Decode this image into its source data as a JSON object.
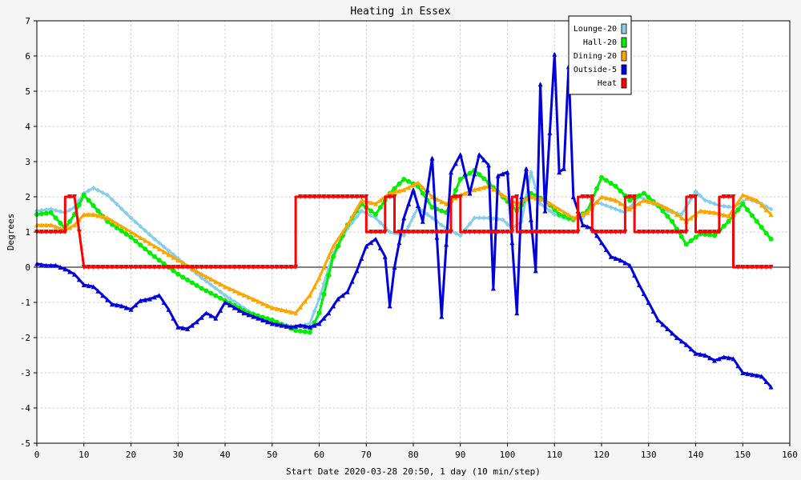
{
  "chart_data": {
    "type": "line",
    "title": "Heating in Essex",
    "xlabel": "Start Date 2020-03-28 20:50, 1 day (10 min/step)",
    "ylabel": "Degrees",
    "xlim": [
      0,
      160
    ],
    "ylim": [
      -5,
      7
    ],
    "x_ticks": [
      0,
      10,
      20,
      30,
      40,
      50,
      60,
      70,
      80,
      90,
      100,
      110,
      120,
      130,
      140,
      150,
      160
    ],
    "y_ticks": [
      -5,
      -4,
      -3,
      -2,
      -1,
      0,
      1,
      2,
      3,
      4,
      5,
      6,
      7
    ],
    "grid": true,
    "legend_position": "top-right",
    "series": [
      {
        "name": "Lounge-20",
        "color": "#87ceeb",
        "marker": "diamond",
        "x": [
          0,
          3,
          6,
          8,
          10,
          12,
          15,
          20,
          25,
          30,
          35,
          40,
          45,
          50,
          55,
          58,
          60,
          63,
          66,
          69,
          72,
          75,
          78,
          81,
          84,
          87,
          90,
          93,
          96,
          99,
          101,
          103,
          105,
          107,
          110,
          113,
          116,
          119,
          122,
          125,
          128,
          131,
          134,
          137,
          140,
          142,
          145,
          148,
          151,
          154,
          156
        ],
        "y": [
          1.6,
          1.65,
          1.55,
          1.7,
          2.1,
          2.25,
          2.05,
          1.4,
          0.8,
          0.25,
          -0.3,
          -0.8,
          -1.25,
          -1.55,
          -1.7,
          -1.6,
          -0.9,
          0.4,
          1.1,
          1.6,
          1.4,
          1.0,
          0.9,
          1.7,
          1.4,
          1.1,
          0.9,
          1.4,
          1.4,
          1.35,
          1.1,
          1.3,
          2.7,
          1.8,
          1.5,
          1.35,
          1.4,
          1.85,
          1.7,
          1.55,
          2.0,
          1.8,
          1.6,
          1.5,
          2.15,
          1.9,
          1.75,
          1.7,
          1.95,
          1.8,
          1.65
        ]
      },
      {
        "name": "Hall-20",
        "color": "#00ee00",
        "marker": "circle",
        "x": [
          0,
          3,
          6,
          8,
          10,
          12,
          15,
          20,
          25,
          30,
          35,
          40,
          45,
          50,
          55,
          58,
          60,
          63,
          66,
          69,
          72,
          75,
          78,
          81,
          84,
          87,
          90,
          93,
          96,
          99,
          102,
          105,
          108,
          111,
          114,
          117,
          120,
          123,
          126,
          129,
          132,
          135,
          138,
          141,
          144,
          147,
          150,
          153,
          156
        ],
        "y": [
          1.5,
          1.55,
          1.1,
          1.5,
          2.05,
          1.75,
          1.3,
          0.85,
          0.3,
          -0.2,
          -0.6,
          -0.95,
          -1.3,
          -1.5,
          -1.8,
          -1.85,
          -1.3,
          0.3,
          1.2,
          1.8,
          1.5,
          2.1,
          2.5,
          2.3,
          1.7,
          1.55,
          2.5,
          2.75,
          2.4,
          2.0,
          1.6,
          2.1,
          1.9,
          1.5,
          1.35,
          1.6,
          2.55,
          2.3,
          1.9,
          2.1,
          1.75,
          1.3,
          0.65,
          0.95,
          0.9,
          1.3,
          1.8,
          1.3,
          0.8
        ]
      },
      {
        "name": "Dining-20",
        "color": "#ffa500",
        "marker": "triangle",
        "x": [
          0,
          3,
          6,
          8,
          10,
          12,
          15,
          20,
          25,
          30,
          35,
          40,
          45,
          50,
          55,
          58,
          60,
          63,
          66,
          69,
          72,
          75,
          78,
          81,
          84,
          87,
          90,
          93,
          96,
          99,
          102,
          105,
          108,
          111,
          114,
          117,
          120,
          123,
          126,
          129,
          132,
          135,
          138,
          141,
          144,
          147,
          150,
          153,
          156
        ],
        "y": [
          1.2,
          1.2,
          1.05,
          1.2,
          1.5,
          1.5,
          1.4,
          1.0,
          0.6,
          0.2,
          -0.2,
          -0.55,
          -0.85,
          -1.15,
          -1.3,
          -0.8,
          -0.3,
          0.6,
          1.2,
          1.9,
          1.8,
          2.1,
          2.2,
          2.4,
          2.0,
          1.8,
          2.05,
          2.2,
          2.3,
          2.05,
          1.8,
          2.0,
          1.9,
          1.65,
          1.4,
          1.55,
          2.0,
          1.9,
          1.65,
          1.9,
          1.8,
          1.6,
          1.3,
          1.6,
          1.55,
          1.45,
          2.05,
          1.9,
          1.5
        ]
      },
      {
        "name": "Outside-5",
        "color": "#0000dd",
        "marker": "triangle",
        "x": [
          0,
          2,
          4,
          6,
          8,
          10,
          12,
          14,
          16,
          18,
          20,
          22,
          24,
          26,
          28,
          30,
          32,
          34,
          36,
          38,
          40,
          42,
          44,
          46,
          48,
          50,
          52,
          54,
          56,
          58,
          60,
          62,
          64,
          66,
          68,
          70,
          72,
          74,
          75,
          76,
          78,
          80,
          82,
          84,
          86,
          88,
          90,
          92,
          94,
          96,
          97,
          98,
          100,
          102,
          103,
          104,
          106,
          107,
          108,
          110,
          111,
          112,
          113,
          114,
          116,
          118,
          120,
          122,
          124,
          126,
          128,
          130,
          132,
          134,
          136,
          138,
          140,
          142,
          144,
          146,
          148,
          150,
          152,
          154,
          156
        ],
        "y": [
          0.1,
          0.05,
          0.05,
          -0.05,
          -0.2,
          -0.5,
          -0.55,
          -0.8,
          -1.05,
          -1.1,
          -1.2,
          -0.95,
          -0.9,
          -0.8,
          -1.2,
          -1.7,
          -1.75,
          -1.55,
          -1.3,
          -1.45,
          -1.0,
          -1.15,
          -1.3,
          -1.4,
          -1.5,
          -1.6,
          -1.65,
          -1.7,
          -1.65,
          -1.7,
          -1.6,
          -1.3,
          -0.9,
          -0.7,
          -0.1,
          0.6,
          0.8,
          0.3,
          -1.1,
          0.0,
          1.4,
          2.2,
          1.3,
          3.1,
          -1.4,
          2.7,
          3.2,
          2.1,
          3.2,
          2.9,
          -0.6,
          2.6,
          2.7,
          -1.3,
          2.0,
          2.8,
          -0.1,
          5.2,
          1.6,
          6.05,
          2.7,
          2.8,
          5.7,
          2.0,
          1.2,
          1.1,
          0.7,
          0.3,
          0.2,
          0.05,
          -0.5,
          -1.0,
          -1.5,
          -1.75,
          -2.0,
          -2.2,
          -2.45,
          -2.5,
          -2.65,
          -2.55,
          -2.6,
          -3.0,
          -3.05,
          -3.1,
          -3.4
        ]
      },
      {
        "name": "Heat",
        "color": "#ff0000",
        "marker": "triangle-down",
        "x": [
          0,
          6,
          6,
          8,
          10,
          55,
          55,
          70,
          70,
          74,
          74,
          76,
          76,
          88,
          88,
          90,
          90,
          101,
          101,
          102,
          102,
          115,
          115,
          118,
          118,
          125,
          125,
          127,
          127,
          138,
          138,
          140,
          140,
          145,
          145,
          148,
          148,
          156
        ],
        "y": [
          1,
          1,
          2,
          2,
          0,
          0,
          2,
          2,
          1,
          1,
          2,
          2,
          1,
          1,
          2,
          2,
          1,
          1,
          2,
          2,
          1,
          1,
          2,
          2,
          1,
          1,
          2,
          2,
          1,
          1,
          2,
          2,
          1,
          1,
          2,
          2,
          0,
          0
        ]
      }
    ]
  }
}
